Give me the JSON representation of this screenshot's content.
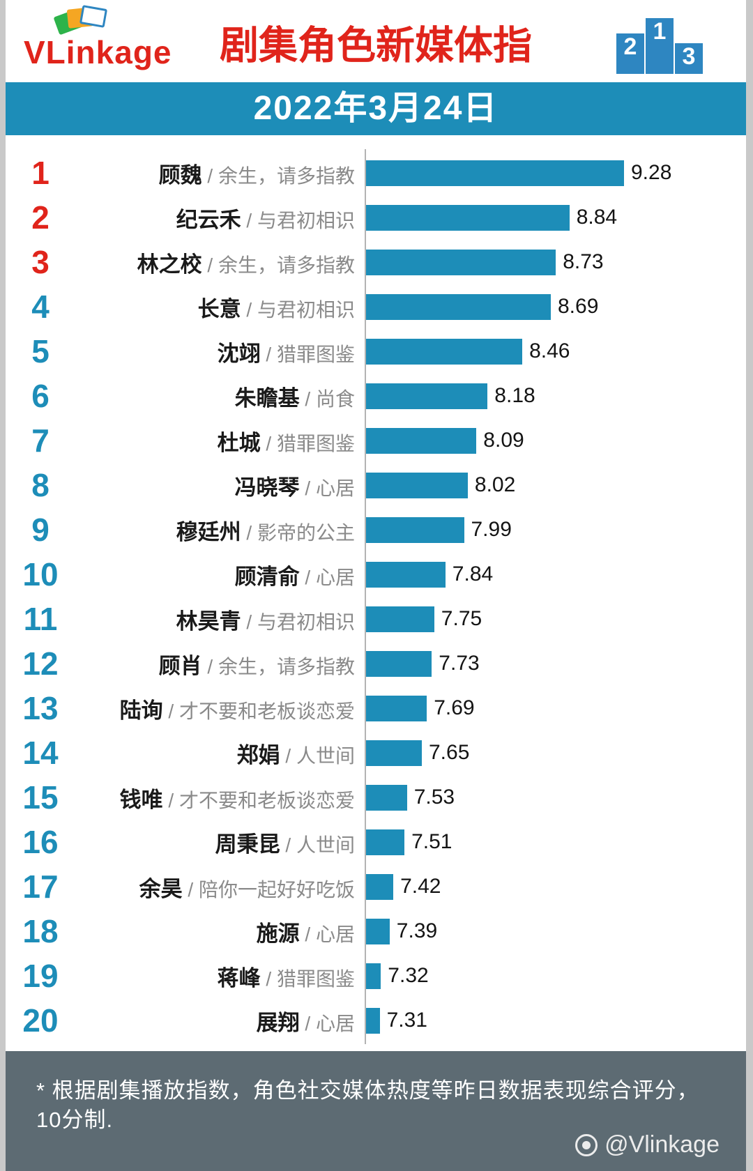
{
  "header": {
    "logo_text": "VLinkage",
    "title": "剧集角色新媒体指",
    "podium": {
      "first": "1",
      "second": "2",
      "third": "3"
    }
  },
  "date_banner": "2022年3月24日",
  "chart_data": {
    "type": "bar",
    "orientation": "horizontal",
    "title": "剧集角色新媒体指",
    "date": "2022年3月24日",
    "bar_color": "#1d8db8",
    "rank_top3_color": "#e0241b",
    "rank_color": "#1d8db8",
    "axis_hint": {
      "bar_scale_min": 7.2,
      "bar_scale_max": 9.28
    },
    "entries": [
      {
        "rank": 1,
        "name": "顾魏",
        "drama": "余生，请多指教",
        "value": 9.28
      },
      {
        "rank": 2,
        "name": "纪云禾",
        "drama": "与君初相识",
        "value": 8.84
      },
      {
        "rank": 3,
        "name": "林之校",
        "drama": "余生，请多指教",
        "value": 8.73
      },
      {
        "rank": 4,
        "name": "长意",
        "drama": "与君初相识",
        "value": 8.69
      },
      {
        "rank": 5,
        "name": "沈翊",
        "drama": "猎罪图鉴",
        "value": 8.46
      },
      {
        "rank": 6,
        "name": "朱瞻基",
        "drama": "尚食",
        "value": 8.18
      },
      {
        "rank": 7,
        "name": "杜城",
        "drama": "猎罪图鉴",
        "value": 8.09
      },
      {
        "rank": 8,
        "name": "冯晓琴",
        "drama": "心居",
        "value": 8.02
      },
      {
        "rank": 9,
        "name": "穆廷州",
        "drama": "影帝的公主",
        "value": 7.99
      },
      {
        "rank": 10,
        "name": "顾清俞",
        "drama": "心居",
        "value": 7.84
      },
      {
        "rank": 11,
        "name": "林昊青",
        "drama": "与君初相识",
        "value": 7.75
      },
      {
        "rank": 12,
        "name": "顾肖",
        "drama": "余生，请多指教",
        "value": 7.73
      },
      {
        "rank": 13,
        "name": "陆询",
        "drama": "才不要和老板谈恋爱",
        "value": 7.69
      },
      {
        "rank": 14,
        "name": "郑娟",
        "drama": "人世间",
        "value": 7.65
      },
      {
        "rank": 15,
        "name": "钱唯",
        "drama": "才不要和老板谈恋爱",
        "value": 7.53
      },
      {
        "rank": 16,
        "name": "周秉昆",
        "drama": "人世间",
        "value": 7.51
      },
      {
        "rank": 17,
        "name": "余昊",
        "drama": "陪你一起好好吃饭",
        "value": 7.42
      },
      {
        "rank": 18,
        "name": "施源",
        "drama": "心居",
        "value": 7.39
      },
      {
        "rank": 19,
        "name": "蒋峰",
        "drama": "猎罪图鉴",
        "value": 7.32
      },
      {
        "rank": 20,
        "name": "展翔",
        "drama": "心居",
        "value": 7.31
      }
    ]
  },
  "footer": {
    "note": "* 根据剧集播放指数，角色社交媒体热度等昨日数据表现综合评分，10分制.",
    "watermark": "@Vlinkage"
  }
}
